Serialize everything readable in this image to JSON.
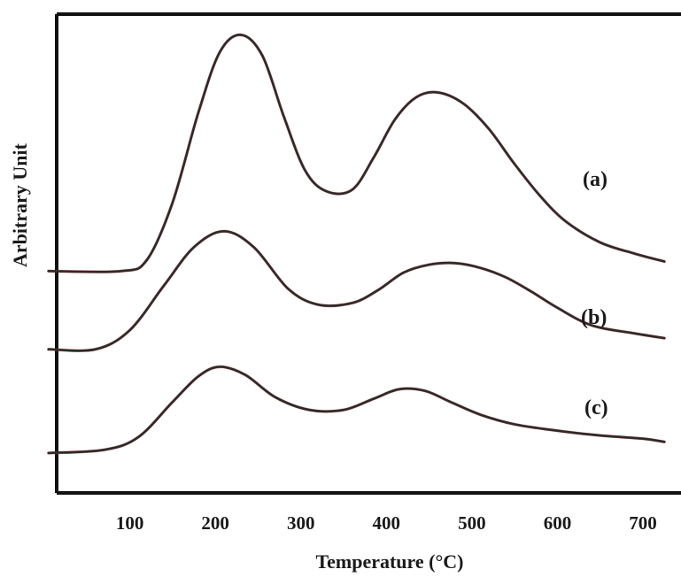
{
  "chart_data": {
    "type": "line",
    "title": "",
    "xlabel": "Temperature (°C)",
    "ylabel": "Arbitrary Unit",
    "xlim": [
      0,
      730
    ],
    "x_ticks": [
      100,
      200,
      300,
      400,
      500,
      600,
      700
    ],
    "y_ticks": [],
    "grid": false,
    "legend": "none",
    "series": [
      {
        "name": "(a)",
        "color": "#2b2b2b",
        "points": [
          [
            5,
            0.245
          ],
          [
            90,
            0.245
          ],
          [
            120,
            0.28
          ],
          [
            150,
            0.46
          ],
          [
            180,
            0.74
          ],
          [
            205,
            0.93
          ],
          [
            230,
            0.985
          ],
          [
            255,
            0.92
          ],
          [
            280,
            0.73
          ],
          [
            305,
            0.56
          ],
          [
            330,
            0.495
          ],
          [
            360,
            0.5
          ],
          [
            385,
            0.6
          ],
          [
            410,
            0.72
          ],
          [
            435,
            0.79
          ],
          [
            460,
            0.805
          ],
          [
            490,
            0.77
          ],
          [
            520,
            0.69
          ],
          [
            550,
            0.58
          ],
          [
            580,
            0.48
          ],
          [
            610,
            0.4
          ],
          [
            650,
            0.335
          ],
          [
            690,
            0.3
          ],
          [
            725,
            0.275
          ]
        ]
      },
      {
        "name": "(b)",
        "color": "#2b2b2b",
        "points": [
          [
            5,
            0.0
          ],
          [
            60,
            0.0
          ],
          [
            100,
            0.06
          ],
          [
            140,
            0.2
          ],
          [
            175,
            0.32
          ],
          [
            210,
            0.37
          ],
          [
            245,
            0.32
          ],
          [
            285,
            0.19
          ],
          [
            320,
            0.14
          ],
          [
            360,
            0.145
          ],
          [
            390,
            0.185
          ],
          [
            420,
            0.24
          ],
          [
            450,
            0.265
          ],
          [
            480,
            0.27
          ],
          [
            510,
            0.255
          ],
          [
            540,
            0.225
          ],
          [
            570,
            0.18
          ],
          [
            600,
            0.13
          ],
          [
            640,
            0.075
          ],
          [
            690,
            0.05
          ],
          [
            725,
            0.035
          ]
        ]
      },
      {
        "name": "(c)",
        "color": "#2b2b2b",
        "points": [
          [
            5,
            -0.325
          ],
          [
            70,
            -0.315
          ],
          [
            110,
            -0.275
          ],
          [
            150,
            -0.165
          ],
          [
            180,
            -0.085
          ],
          [
            205,
            -0.055
          ],
          [
            235,
            -0.08
          ],
          [
            270,
            -0.15
          ],
          [
            310,
            -0.19
          ],
          [
            350,
            -0.19
          ],
          [
            385,
            -0.155
          ],
          [
            415,
            -0.125
          ],
          [
            445,
            -0.13
          ],
          [
            475,
            -0.165
          ],
          [
            510,
            -0.205
          ],
          [
            550,
            -0.235
          ],
          [
            600,
            -0.255
          ],
          [
            650,
            -0.27
          ],
          [
            700,
            -0.28
          ],
          [
            725,
            -0.29
          ]
        ]
      }
    ]
  }
}
